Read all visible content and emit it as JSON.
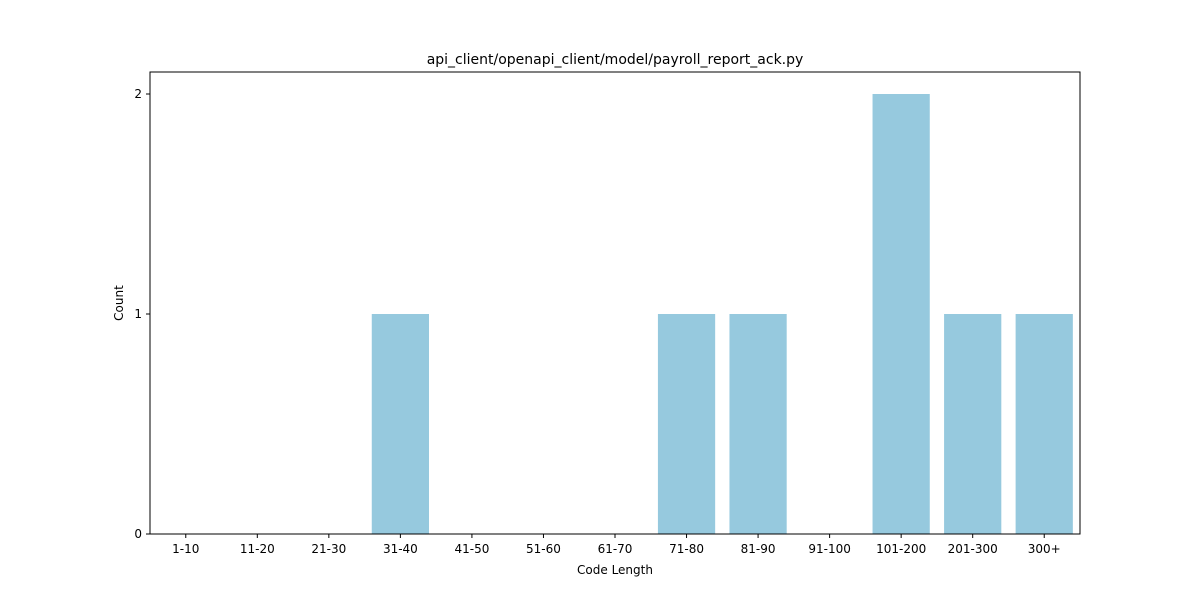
{
  "chart_data": {
    "type": "bar",
    "title": "api_client/openapi_client/model/payroll_report_ack.py",
    "xlabel": "Code Length",
    "ylabel": "Count",
    "categories": [
      "1-10",
      "11-20",
      "21-30",
      "31-40",
      "41-50",
      "51-60",
      "61-70",
      "71-80",
      "81-90",
      "91-100",
      "101-200",
      "201-300",
      "300+"
    ],
    "values": [
      0,
      0,
      0,
      1,
      0,
      0,
      0,
      1,
      1,
      0,
      2,
      1,
      1
    ],
    "ylim": [
      0,
      2.1
    ],
    "yticks": [
      0,
      1,
      2
    ],
    "grid": false,
    "bar_color": "#96c9de"
  }
}
